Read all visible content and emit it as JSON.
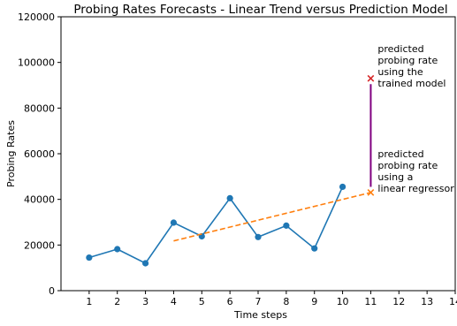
{
  "chart_data": {
    "type": "line",
    "title": "Probing Rates Forecasts - Linear Trend versus Prediction Model",
    "xlabel": "Time steps",
    "ylabel": "Probing Rates",
    "xlim": [
      0,
      14
    ],
    "ylim": [
      0,
      120000
    ],
    "xticks": [
      1,
      2,
      3,
      4,
      5,
      6,
      7,
      8,
      9,
      10,
      11,
      12,
      13,
      14
    ],
    "yticks": [
      0,
      20000,
      40000,
      60000,
      80000,
      100000,
      120000
    ],
    "grid": false,
    "series": [
      {
        "style": "solid-line-markers",
        "color": "#1f77b4",
        "x": [
          1,
          2,
          3,
          4,
          5,
          6,
          7,
          8,
          9,
          10
        ],
        "y": [
          14500,
          18200,
          12000,
          29800,
          23800,
          40500,
          23500,
          28500,
          18500,
          45500
        ]
      },
      {
        "style": "dashed-line",
        "color": "#ff7f0e",
        "x": [
          4,
          11
        ],
        "y": [
          21800,
          43000
        ]
      }
    ],
    "points": [
      {
        "label": "predicted-by-model",
        "x": 11,
        "y": 93000,
        "marker": "x",
        "color": "#d62728"
      },
      {
        "label": "predicted-by-regressor",
        "x": 11,
        "y": 43000,
        "marker": "x",
        "color": "#ff7f0e"
      }
    ],
    "gap_line": {
      "x": 11,
      "y_from": 45500,
      "y_to": 90500,
      "color": "#800080"
    },
    "annotations": [
      {
        "lines": [
          "predicted",
          "probing rate",
          "using the",
          "trained model"
        ],
        "x": 11.25,
        "y": 104500
      },
      {
        "lines": [
          "predicted",
          "probing rate",
          "using a",
          "linear regressor"
        ],
        "x": 11.25,
        "y": 58500
      }
    ]
  }
}
